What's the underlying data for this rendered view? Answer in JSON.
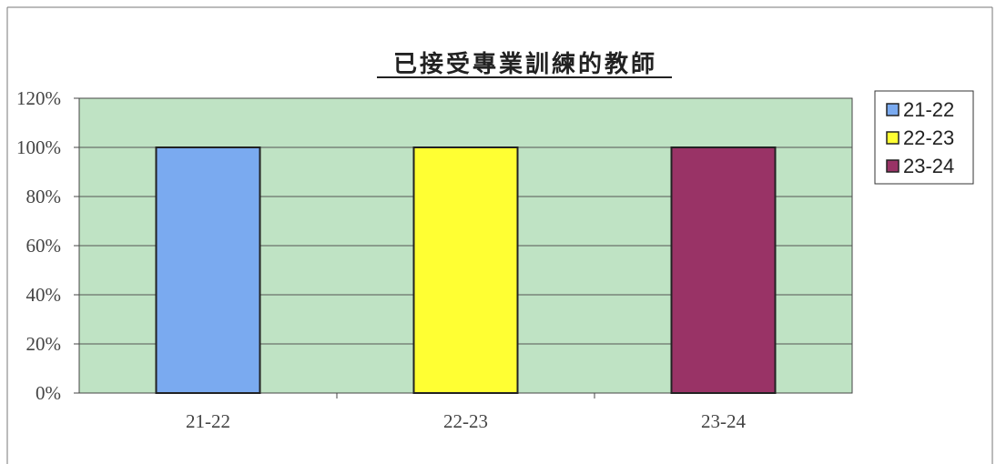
{
  "chart_data": {
    "type": "bar",
    "title": "已接受專業訓練的教師",
    "categories": [
      "21-22",
      "22-23",
      "23-24"
    ],
    "series": [
      {
        "name": "21-22",
        "color": "#7aaaf0",
        "values": [
          100,
          null,
          null
        ]
      },
      {
        "name": "22-23",
        "color": "#ffff33",
        "values": [
          null,
          100,
          null
        ]
      },
      {
        "name": "23-24",
        "color": "#993366",
        "values": [
          null,
          null,
          100
        ]
      }
    ],
    "y_ticks": [
      "0%",
      "20%",
      "40%",
      "60%",
      "80%",
      "100%",
      "120%"
    ],
    "ylim": [
      0,
      120
    ],
    "y_unit": "percent",
    "grid": true,
    "plot_background": "#bfe3c4",
    "legend_position": "right"
  }
}
